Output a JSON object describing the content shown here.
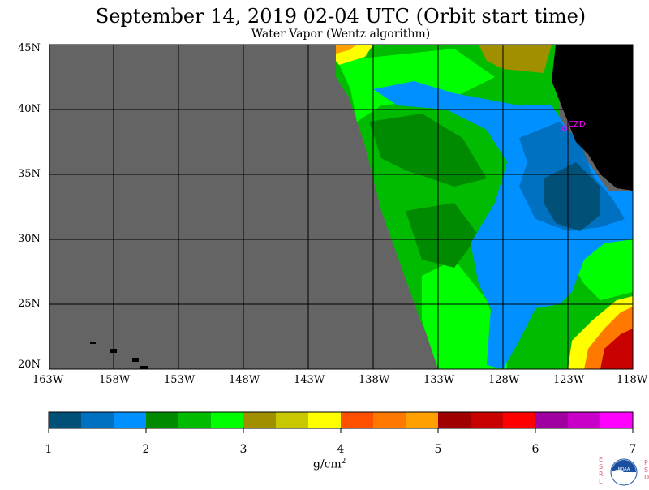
{
  "header": {
    "title": "September 14, 2019  02-04 UTC  (Orbit start time)",
    "subtitle": "Water Vapor (Wentz algorithm)"
  },
  "map": {
    "lat_labels": [
      "45N",
      "40N",
      "35N",
      "30N",
      "25N",
      "20N"
    ],
    "lon_labels": [
      "163W",
      "158W",
      "153W",
      "148W",
      "143W",
      "138W",
      "133W",
      "128W",
      "123W",
      "118W"
    ],
    "station_label": "CZD",
    "colors": {
      "no_data": "#646464",
      "land": "#000000",
      "station": "#ff00ff"
    }
  },
  "colorbar": {
    "ticks": [
      "1",
      "2",
      "3",
      "4",
      "5",
      "6",
      "7"
    ],
    "units": "g/cm",
    "units_sup": "2",
    "colors": [
      "#005078",
      "#0070c0",
      "#0090ff",
      "#008a00",
      "#00bb00",
      "#00ff00",
      "#a09000",
      "#c8c800",
      "#ffff00",
      "#ff5000",
      "#ff7800",
      "#ffa000",
      "#a00000",
      "#c80000",
      "#ff0000",
      "#a000a0",
      "#c800c8",
      "#ff00ff"
    ]
  },
  "logo": {
    "letters_left": [
      "E",
      "S",
      "R",
      "L"
    ],
    "letters_right": [
      "P",
      "S",
      "D"
    ],
    "center_text": "NOAA"
  }
}
